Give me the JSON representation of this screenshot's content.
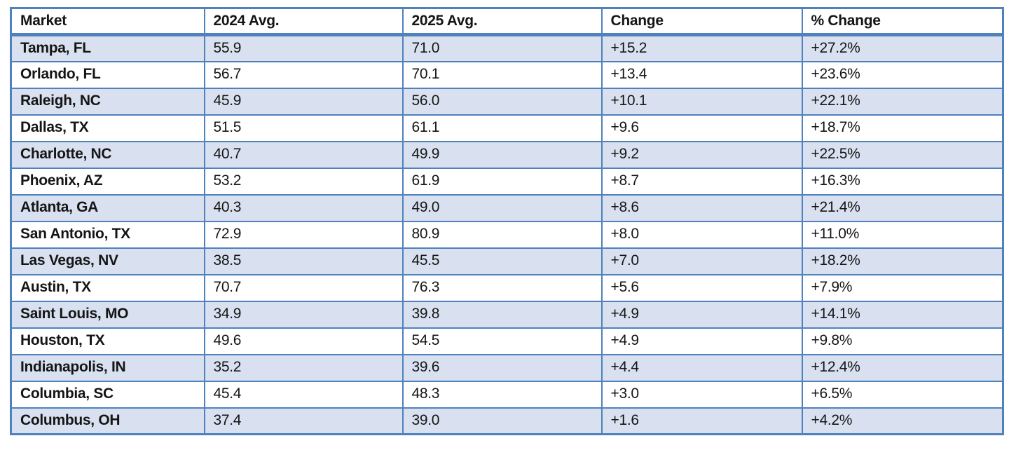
{
  "colors": {
    "border_blue": "#4f81bd",
    "band_fill": "#d9e1f0",
    "row_fill": "#ffffff",
    "text": "#151515"
  },
  "table": {
    "columns": [
      "Market",
      "2024 Avg.",
      "2025 Avg.",
      "Change",
      "% Change"
    ],
    "rows": [
      [
        "Tampa, FL",
        "55.9",
        "71.0",
        "+15.2",
        "+27.2%"
      ],
      [
        "Orlando, FL",
        "56.7",
        "70.1",
        "+13.4",
        "+23.6%"
      ],
      [
        "Raleigh, NC",
        "45.9",
        "56.0",
        "+10.1",
        "+22.1%"
      ],
      [
        "Dallas, TX",
        "51.5",
        "61.1",
        "+9.6",
        "+18.7%"
      ],
      [
        "Charlotte, NC",
        "40.7",
        "49.9",
        "+9.2",
        "+22.5%"
      ],
      [
        "Phoenix, AZ",
        "53.2",
        "61.9",
        "+8.7",
        "+16.3%"
      ],
      [
        "Atlanta, GA",
        "40.3",
        "49.0",
        "+8.6",
        "+21.4%"
      ],
      [
        "San Antonio, TX",
        "72.9",
        "80.9",
        "+8.0",
        "+11.0%"
      ],
      [
        "Las Vegas, NV",
        "38.5",
        "45.5",
        "+7.0",
        "+18.2%"
      ],
      [
        "Austin, TX",
        "70.7",
        "76.3",
        "+5.6",
        "+7.9%"
      ],
      [
        "Saint Louis, MO",
        "34.9",
        "39.8",
        "+4.9",
        "+14.1%"
      ],
      [
        "Houston, TX",
        "49.6",
        "54.5",
        "+4.9",
        "+9.8%"
      ],
      [
        "Indianapolis, IN",
        "35.2",
        "39.6",
        "+4.4",
        "+12.4%"
      ],
      [
        "Columbia, SC",
        "45.4",
        "48.3",
        "+3.0",
        "+6.5%"
      ],
      [
        "Columbus, OH",
        "37.4",
        "39.0",
        "+1.6",
        "+4.2%"
      ]
    ]
  },
  "chart_data": {
    "type": "table",
    "title": "",
    "columns": [
      "Market",
      "2024 Avg.",
      "2025 Avg.",
      "Change",
      "% Change"
    ],
    "rows": [
      [
        "Tampa, FL",
        55.9,
        71.0,
        15.2,
        27.2
      ],
      [
        "Orlando, FL",
        56.7,
        70.1,
        13.4,
        23.6
      ],
      [
        "Raleigh, NC",
        45.9,
        56.0,
        10.1,
        22.1
      ],
      [
        "Dallas, TX",
        51.5,
        61.1,
        9.6,
        18.7
      ],
      [
        "Charlotte, NC",
        40.7,
        49.9,
        9.2,
        22.5
      ],
      [
        "Phoenix, AZ",
        53.2,
        61.9,
        8.7,
        16.3
      ],
      [
        "Atlanta, GA",
        40.3,
        49.0,
        8.6,
        21.4
      ],
      [
        "San Antonio, TX",
        72.9,
        80.9,
        8.0,
        11.0
      ],
      [
        "Las Vegas, NV",
        38.5,
        45.5,
        7.0,
        18.2
      ],
      [
        "Austin, TX",
        70.7,
        76.3,
        5.6,
        7.9
      ],
      [
        "Saint Louis, MO",
        34.9,
        39.8,
        4.9,
        14.1
      ],
      [
        "Houston, TX",
        49.6,
        54.5,
        4.9,
        9.8
      ],
      [
        "Indianapolis, IN",
        35.2,
        39.6,
        4.4,
        12.4
      ],
      [
        "Columbia, SC",
        45.4,
        48.3,
        3.0,
        6.5
      ],
      [
        "Columbus, OH",
        37.4,
        39.0,
        1.6,
        4.2
      ]
    ],
    "notes": "Banded rows: odd data rows (1st, 3rd, ...) have pale blue fill; header white with thick blue rule beneath."
  }
}
